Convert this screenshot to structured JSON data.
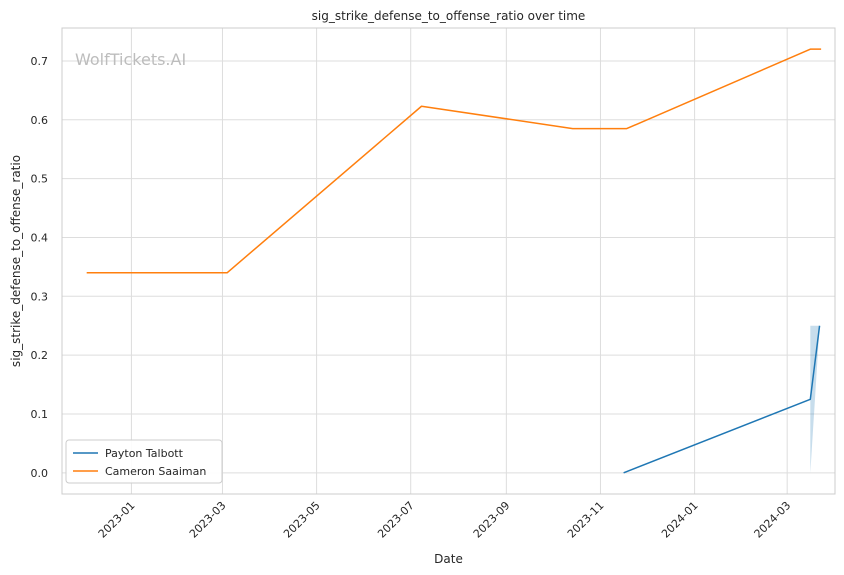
{
  "chart_data": {
    "type": "line",
    "title": "sig_strike_defense_to_offense_ratio over time",
    "xlabel": "Date",
    "ylabel": "sig_strike_defense_to_offense_ratio",
    "watermark": "WolfTickets.AI",
    "xlim": [
      "2022-11-17",
      "2024-04-01"
    ],
    "ylim": [
      -0.036,
      0.756
    ],
    "x_ticks": [
      "2023-01-01",
      "2023-03-01",
      "2023-05-01",
      "2023-07-01",
      "2023-09-01",
      "2023-11-01",
      "2024-01-01",
      "2024-03-01"
    ],
    "x_tick_labels": [
      "2023-01",
      "2023-03",
      "2023-05",
      "2023-07",
      "2023-09",
      "2023-11",
      "2024-01",
      "2024-03"
    ],
    "y_ticks": [
      0.0,
      0.1,
      0.2,
      0.3,
      0.4,
      0.5,
      0.6,
      0.7
    ],
    "y_tick_labels": [
      "0.0",
      "0.1",
      "0.2",
      "0.3",
      "0.4",
      "0.5",
      "0.6",
      "0.7"
    ],
    "grid": true,
    "legend_position": "lower-left",
    "series": [
      {
        "name": "Payton Talbott",
        "color": "#1f77b4",
        "points": [
          {
            "x": "2023-11-16",
            "y": 0.0
          },
          {
            "x": "2024-03-16",
            "y": 0.125
          },
          {
            "x": "2024-03-22",
            "y": 0.25
          }
        ],
        "band": [
          {
            "x": "2024-03-16",
            "low": 0.0,
            "high": 0.25
          },
          {
            "x": "2024-03-22",
            "low": 0.25,
            "high": 0.25
          }
        ]
      },
      {
        "name": "Cameron Saaiman",
        "color": "#ff7f0e",
        "points": [
          {
            "x": "2022-12-03",
            "y": 0.34
          },
          {
            "x": "2023-03-04",
            "y": 0.34
          },
          {
            "x": "2023-07-08",
            "y": 0.623
          },
          {
            "x": "2023-10-14",
            "y": 0.585
          },
          {
            "x": "2023-11-18",
            "y": 0.585
          },
          {
            "x": "2024-03-16",
            "y": 0.72
          },
          {
            "x": "2024-03-23",
            "y": 0.72
          }
        ]
      }
    ]
  }
}
